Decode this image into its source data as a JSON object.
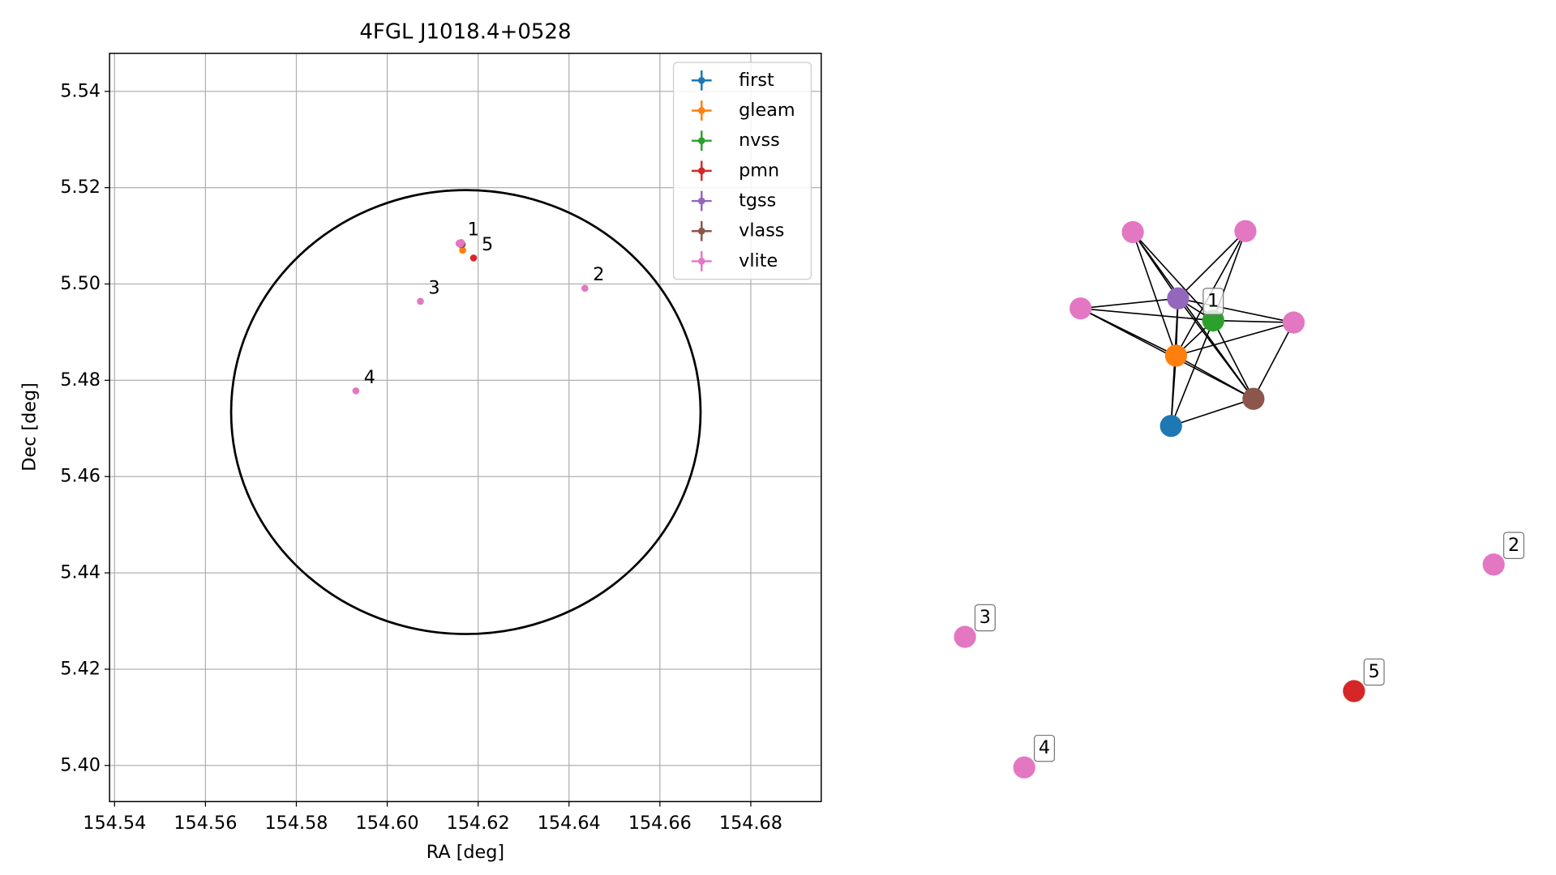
{
  "chart_data": [
    {
      "type": "scatter",
      "title": "4FGL J1018.4+0528",
      "x_label": "RA [deg]",
      "y_label": "Dec [deg]",
      "xlim": [
        154.5389,
        154.6955
      ],
      "ylim": [
        5.3925,
        5.5479
      ],
      "xticks": [
        154.54,
        154.56,
        154.58,
        {
          "value": 154.6,
          "label": "154.60"
        },
        154.62,
        154.64,
        154.66,
        154.68
      ],
      "yticks": [
        {
          "value": 5.4,
          "label": "5.40"
        },
        5.42,
        5.44,
        5.46,
        5.48,
        {
          "value": 5.5,
          "label": "5.50"
        },
        5.52,
        5.54
      ],
      "grid": true,
      "legend": "upper right",
      "series": [
        {
          "name": "first",
          "color": "#1f77b4",
          "x": [
            154.6163
          ],
          "y": [
            5.5081
          ]
        },
        {
          "name": "gleam",
          "color": "#ff7f0e",
          "x": [
            154.6166
          ],
          "y": [
            5.507
          ]
        },
        {
          "name": "nvss",
          "color": "#2ca02c",
          "x": [
            154.6164
          ],
          "y": [
            5.5083
          ]
        },
        {
          "name": "pmn",
          "color": "#d62728",
          "x": [
            154.619
          ],
          "y": [
            5.5054
          ]
        },
        {
          "name": "tgss",
          "color": "#9467bd",
          "x": [
            154.6159
          ],
          "y": [
            5.5085
          ]
        },
        {
          "name": "vlass",
          "color": "#8c564b",
          "x": [
            154.6165
          ],
          "y": [
            5.5082
          ]
        },
        {
          "name": "vlite",
          "color": "#e377c2",
          "x": [
            154.616,
            154.6158,
            154.6163,
            154.6161,
            154.6435,
            154.6073,
            154.5931
          ],
          "y": [
            5.5085,
            5.5084,
            5.5086,
            5.5083,
            5.4991,
            5.4964,
            5.4778
          ]
        }
      ],
      "annotations": [
        {
          "text": "1",
          "x": 154.6159,
          "y": 5.5085
        },
        {
          "text": "5",
          "x": 154.619,
          "y": 5.5054
        },
        {
          "text": "2",
          "x": 154.6435,
          "y": 5.4991
        },
        {
          "text": "3",
          "x": 154.6073,
          "y": 5.4964
        },
        {
          "text": "4",
          "x": 154.5931,
          "y": 5.4778
        }
      ],
      "ellipse": {
        "x": 154.6173,
        "y": 5.4734,
        "width": 0.1033,
        "height": 0.0922,
        "color": "#000000"
      }
    },
    {
      "type": "network",
      "nodes": [
        {
          "color": "#e377c2"
        },
        {
          "color": "#e377c2"
        },
        {
          "color": "#e377c2"
        },
        {
          "color": "#9467bd"
        },
        {
          "color": "#2ca02c",
          "label": "1"
        },
        {
          "color": "#e377c2"
        },
        {
          "color": "#ff7f0e"
        },
        {
          "color": "#8c564b"
        },
        {
          "color": "#1f77b4"
        },
        {
          "color": "#e377c2",
          "label": "2"
        },
        {
          "color": "#e377c2",
          "label": "3"
        },
        {
          "color": "#d62728",
          "label": "5"
        },
        {
          "color": "#e377c2",
          "label": "4"
        }
      ],
      "edges": [
        [
          0,
          3
        ],
        [
          0,
          4
        ],
        [
          0,
          6
        ],
        [
          0,
          7
        ],
        [
          1,
          3
        ],
        [
          1,
          4
        ],
        [
          1,
          6
        ],
        [
          2,
          3
        ],
        [
          2,
          4
        ],
        [
          2,
          6
        ],
        [
          2,
          7
        ],
        [
          3,
          4
        ],
        [
          3,
          5
        ],
        [
          3,
          6
        ],
        [
          3,
          7
        ],
        [
          3,
          8
        ],
        [
          4,
          5
        ],
        [
          4,
          6
        ],
        [
          4,
          7
        ],
        [
          4,
          8
        ],
        [
          5,
          6
        ],
        [
          5,
          7
        ],
        [
          6,
          7
        ],
        [
          6,
          8
        ],
        [
          7,
          8
        ]
      ]
    }
  ]
}
